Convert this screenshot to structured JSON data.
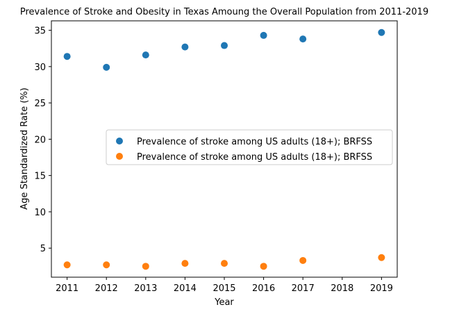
{
  "chart_data": {
    "type": "scatter",
    "title": "Prevalence of Stroke and Obesity in Texas Amoung the Overall Population from 2011-2019",
    "xlabel": "Year",
    "ylabel": "Age Standardized Rate (%)",
    "xlim": [
      2010.6,
      2019.4
    ],
    "ylim": [
      1.0,
      36.3
    ],
    "xticks": [
      2011,
      2012,
      2013,
      2014,
      2015,
      2016,
      2017,
      2018,
      2019
    ],
    "yticks": [
      5,
      10,
      15,
      20,
      25,
      30,
      35
    ],
    "grid": false,
    "legend_position": "center-right",
    "series": [
      {
        "name": "Prevalence of stroke among US adults (18+); BRFSS",
        "color": "#1f77b4",
        "x": [
          2011,
          2012,
          2013,
          2014,
          2015,
          2016,
          2017,
          2019
        ],
        "y": [
          31.4,
          29.9,
          31.6,
          32.7,
          32.9,
          34.3,
          33.8,
          34.7
        ]
      },
      {
        "name": "Prevalence of stroke among US adults (18+); BRFSS",
        "color": "#ff7f0e",
        "x": [
          2011,
          2012,
          2013,
          2014,
          2015,
          2016,
          2017,
          2019
        ],
        "y": [
          2.7,
          2.7,
          2.5,
          2.9,
          2.9,
          2.5,
          3.3,
          3.7
        ]
      }
    ]
  }
}
